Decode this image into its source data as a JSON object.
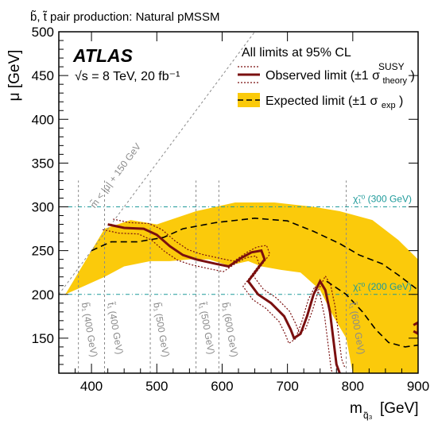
{
  "chart_data": {
    "type": "area",
    "header": "b̃, t̃ pair production: Natural pMSSM",
    "brand": "ATLAS",
    "energy_label": "√s = 8 TeV, 20 fb⁻¹",
    "cl_label": "All limits at 95% CL",
    "xlabel": "m",
    "xlabel_sub": "q̃₃",
    "xlabel_unit": "[GeV]",
    "ylabel": "μ [GeV]",
    "xlim": [
      350,
      900
    ],
    "ylim": [
      110,
      500
    ],
    "xticks": [
      400,
      500,
      600,
      700,
      800,
      900
    ],
    "yticks": [
      150,
      200,
      250,
      300,
      350,
      400,
      450,
      500
    ],
    "legend": {
      "observed": "Observed limit (±1 σ",
      "observed_sup": "SUSY",
      "observed_sub": "theory",
      "observed_close": ")",
      "expected": "Expected limit (±1 σ",
      "expected_sub": "exp",
      "expected_close": ")"
    },
    "colors": {
      "band": "#fbca0b",
      "observed": "#7a0f0f",
      "expected": "#000000",
      "reference_grey": "#8a8a8a",
      "chi_teal": "#1e9a9a"
    },
    "diagonal_label": "m̃ < |μ| + 150 GeV",
    "diagonal": [
      [
        350,
        200
      ],
      [
        500,
        350
      ],
      [
        650,
        500
      ]
    ],
    "chi_lines": [
      {
        "label": "χ̃₁⁰ (200 GeV)",
        "y": 200
      },
      {
        "label": "χ̃₁⁰ (300 GeV)",
        "y": 300
      }
    ],
    "mass_labels": [
      {
        "label": "b̃₁ (400 GeV)",
        "x": 380
      },
      {
        "label": "t̃₁ (400 GeV)",
        "x": 420
      },
      {
        "label": "b̃₁ (500 GeV)",
        "x": 490
      },
      {
        "label": "t̃₁ (500 GeV)",
        "x": 560
      },
      {
        "label": "b̃₁ (600 GeV)",
        "x": 595
      },
      {
        "label": "t̃₁ (600 GeV)",
        "x": 790
      }
    ],
    "expected_band": [
      [
        360,
        200
      ],
      [
        400,
        250
      ],
      [
        420,
        275
      ],
      [
        460,
        285
      ],
      [
        500,
        280
      ],
      [
        560,
        295
      ],
      [
        620,
        305
      ],
      [
        680,
        305
      ],
      [
        740,
        300
      ],
      [
        780,
        295
      ],
      [
        830,
        285
      ],
      [
        870,
        262
      ],
      [
        900,
        240
      ],
      [
        900,
        110
      ],
      [
        800,
        110
      ],
      [
        790,
        150
      ],
      [
        770,
        175
      ],
      [
        750,
        205
      ],
      [
        720,
        225
      ],
      [
        690,
        228
      ],
      [
        660,
        232
      ],
      [
        640,
        238
      ],
      [
        610,
        233
      ],
      [
        580,
        240
      ],
      [
        550,
        240
      ],
      [
        520,
        238
      ],
      [
        490,
        238
      ],
      [
        450,
        232
      ],
      [
        420,
        220
      ],
      [
        390,
        210
      ]
    ],
    "expected_line": [
      [
        400,
        250
      ],
      [
        430,
        260
      ],
      [
        470,
        260
      ],
      [
        510,
        265
      ],
      [
        540,
        275
      ],
      [
        590,
        282
      ],
      [
        650,
        287
      ],
      [
        700,
        284
      ],
      [
        740,
        272
      ],
      [
        780,
        258
      ],
      [
        810,
        245
      ],
      [
        845,
        235
      ],
      [
        870,
        222
      ],
      [
        900,
        205
      ]
    ],
    "expected_line_lower": [
      [
        760,
        215
      ],
      [
        790,
        200
      ],
      [
        815,
        180
      ],
      [
        835,
        160
      ],
      [
        855,
        145
      ],
      [
        880,
        140
      ],
      [
        900,
        142
      ]
    ],
    "observed": [
      [
        425,
        280
      ],
      [
        450,
        276
      ],
      [
        480,
        275
      ],
      [
        500,
        268
      ],
      [
        520,
        255
      ],
      [
        540,
        245
      ],
      [
        560,
        240
      ],
      [
        590,
        235
      ],
      [
        610,
        232
      ],
      [
        630,
        242
      ],
      [
        645,
        248
      ],
      [
        660,
        250
      ],
      [
        665,
        240
      ],
      [
        650,
        225
      ],
      [
        640,
        215
      ],
      [
        655,
        200
      ],
      [
        675,
        190
      ],
      [
        695,
        175
      ],
      [
        705,
        160
      ],
      [
        710,
        150
      ],
      [
        720,
        155
      ],
      [
        730,
        175
      ],
      [
        740,
        200
      ],
      [
        750,
        215
      ],
      [
        758,
        205
      ],
      [
        765,
        180
      ],
      [
        770,
        150
      ],
      [
        775,
        120
      ],
      [
        780,
        110
      ]
    ],
    "observed_right": [
      [
        893,
        165
      ],
      [
        900,
        168
      ],
      [
        900,
        155
      ],
      [
        893,
        158
      ]
    ]
  }
}
